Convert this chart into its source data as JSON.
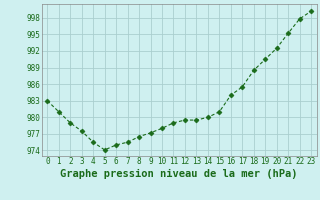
{
  "x": [
    0,
    1,
    2,
    3,
    4,
    5,
    6,
    7,
    8,
    9,
    10,
    11,
    12,
    13,
    14,
    15,
    16,
    17,
    18,
    19,
    20,
    21,
    22,
    23
  ],
  "y": [
    983,
    981,
    979,
    977.5,
    975.5,
    974.1,
    975.0,
    975.5,
    976.5,
    977.2,
    978.0,
    979.0,
    979.5,
    979.5,
    980.0,
    981.0,
    984.0,
    985.5,
    988.5,
    990.5,
    992.5,
    995.2,
    997.8,
    999.2
  ],
  "line_color": "#1a6b1a",
  "marker": "D",
  "marker_size": 2.5,
  "bg_color": "#cff0f0",
  "grid_color": "#aacfcf",
  "tick_label_color": "#1a6b1a",
  "xlabel": "Graphe pression niveau de la mer (hPa)",
  "xlabel_color": "#1a6b1a",
  "ylim": [
    973.0,
    1000.5
  ],
  "yticks": [
    974,
    977,
    980,
    983,
    986,
    989,
    992,
    995,
    998
  ],
  "xtick_labels": [
    "0",
    "1",
    "2",
    "3",
    "4",
    "5",
    "6",
    "7",
    "8",
    "9",
    "10",
    "11",
    "12",
    "13",
    "14",
    "15",
    "16",
    "17",
    "18",
    "19",
    "20",
    "21",
    "22",
    "23"
  ],
  "tick_fontsize": 5.5,
  "xlabel_fontsize": 7.5
}
